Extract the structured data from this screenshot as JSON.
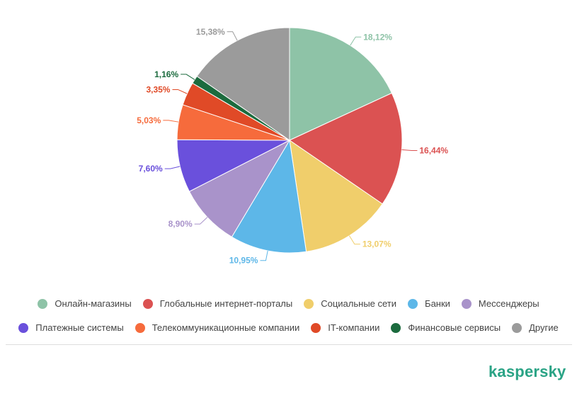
{
  "chart_data": {
    "type": "pie",
    "title": "",
    "slices": [
      {
        "name": "Онлайн-магазины",
        "value": 18.12,
        "label": "18,12%",
        "color": "#8ec3a7"
      },
      {
        "name": "Глобальные интернет-порталы",
        "value": 16.44,
        "label": "16,44%",
        "color": "#db5252"
      },
      {
        "name": "Социальные сети",
        "value": 13.07,
        "label": "13,07%",
        "color": "#f0ce6b"
      },
      {
        "name": "Банки",
        "value": 10.95,
        "label": "10,95%",
        "color": "#5db7e8"
      },
      {
        "name": "Мессенджеры",
        "value": 8.9,
        "label": "8,90%",
        "color": "#a993ca"
      },
      {
        "name": "Платежные системы",
        "value": 7.6,
        "label": "7,60%",
        "color": "#6a50dc"
      },
      {
        "name": "Телекоммуникационные компании",
        "value": 5.03,
        "label": "5,03%",
        "color": "#f66b3c"
      },
      {
        "name": "IT-компании",
        "value": 3.35,
        "label": "3,35%",
        "color": "#e04a27"
      },
      {
        "name": "Финансовые сервисы",
        "value": 1.16,
        "label": "1,16%",
        "color": "#1c6b3e"
      },
      {
        "name": "Другие",
        "value": 15.38,
        "label": "15,38%",
        "color": "#9b9b9b"
      }
    ],
    "legend_placement": "bottom"
  },
  "legend": {
    "row1": [
      "Онлайн-магазины",
      "Глобальные интернет-порталы",
      "Социальные сети",
      "Банки",
      "Мессенджеры"
    ],
    "row2": [
      "Платежные системы",
      "Телекоммуникационные компании",
      "IT-компании",
      "Финансовые сервисы",
      "Другие"
    ]
  },
  "brand": {
    "logo_text": "kaspersky",
    "logo_color": "#2aa385"
  }
}
